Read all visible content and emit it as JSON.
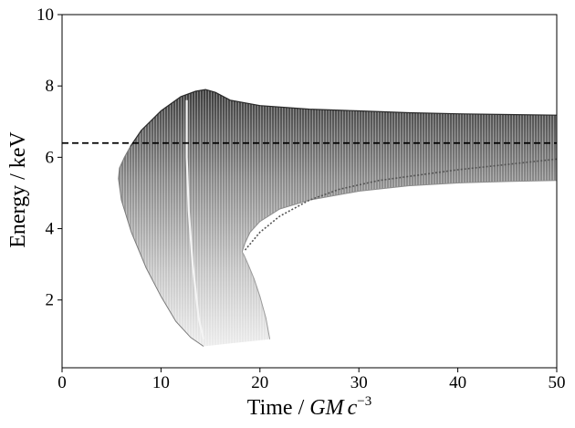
{
  "chart_data": {
    "type": "area",
    "title": "",
    "xlabel": {
      "prefix": "Time / ",
      "math_1": "GM",
      "math_2": "c",
      "exponent": "−3"
    },
    "ylabel": "Energy / keV",
    "xlim": [
      0,
      50
    ],
    "ylim": [
      0.1,
      10
    ],
    "xticks": [
      0,
      10,
      20,
      30,
      40,
      50
    ],
    "xtick_labels": [
      "0",
      "10",
      "20",
      "30",
      "40",
      "50"
    ],
    "yticks": [
      2,
      4,
      6,
      8,
      10
    ],
    "ytick_labels": [
      "2",
      "4",
      "6",
      "8",
      "10"
    ],
    "grid": false,
    "reference_line": {
      "y": 6.4,
      "style": "dashed",
      "color": "#000000"
    },
    "series": [
      {
        "role": "upper-envelope",
        "x": [
          6.9,
          8,
          10,
          12,
          13.5,
          14.5,
          15.5,
          17,
          20,
          25,
          30,
          35,
          40,
          45,
          50
        ],
        "y": [
          6.3,
          6.75,
          7.3,
          7.7,
          7.85,
          7.9,
          7.82,
          7.6,
          7.45,
          7.35,
          7.3,
          7.25,
          7.22,
          7.2,
          7.18
        ]
      },
      {
        "role": "lower-envelope",
        "x": [
          18.2,
          18.5,
          19,
          20,
          22,
          25,
          30,
          35,
          40,
          45,
          50
        ],
        "y": [
          3.35,
          3.6,
          3.9,
          4.2,
          4.55,
          4.8,
          5.05,
          5.2,
          5.28,
          5.32,
          5.35
        ]
      },
      {
        "role": "outer-edge",
        "x": [
          6.9,
          6.3,
          5.8,
          5.7,
          6.0,
          7.0,
          8.5,
          10.0,
          11.5,
          13.0,
          14.3
        ],
        "y": [
          6.3,
          6.0,
          5.7,
          5.4,
          4.8,
          3.9,
          2.9,
          2.1,
          1.4,
          0.95,
          0.7
        ]
      },
      {
        "role": "inner-edge",
        "x": [
          21.0,
          20.6,
          20.0,
          19.4,
          18.8,
          18.4,
          18.2
        ],
        "y": [
          0.9,
          1.5,
          2.1,
          2.6,
          3.0,
          3.25,
          3.35
        ]
      },
      {
        "role": "bright-streak",
        "x": [
          12.6,
          12.6,
          12.8,
          13.2,
          13.8,
          14.3
        ],
        "y": [
          7.6,
          6.0,
          4.5,
          3.0,
          1.5,
          0.9
        ]
      },
      {
        "role": "dark-streak",
        "x": [
          18.5,
          20,
          22,
          25,
          28,
          32,
          36,
          40,
          45,
          50
        ],
        "y": [
          3.4,
          3.9,
          4.35,
          4.8,
          5.1,
          5.35,
          5.5,
          5.65,
          5.8,
          5.95
        ]
      }
    ]
  }
}
